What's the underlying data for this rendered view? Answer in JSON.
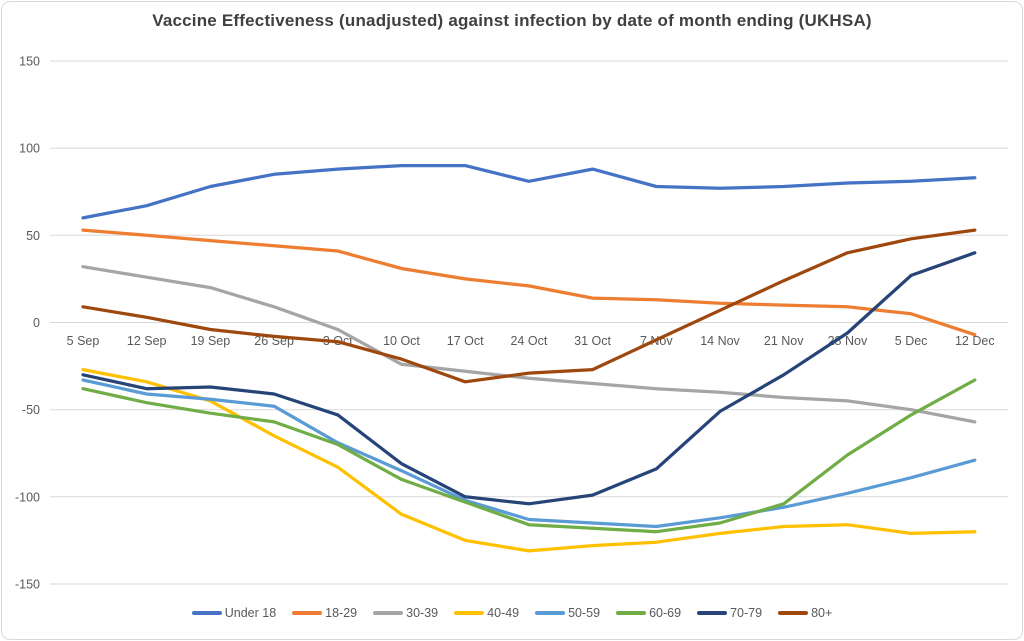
{
  "title": "Vaccine Effectiveness (unadjusted) against infection by date of month ending (UKHSA)",
  "colors": {
    "grid": "#D9D9D9",
    "axis_text": "#595959",
    "title_text": "#404040",
    "frame_border": "#D9D9D9"
  },
  "chart_data": {
    "type": "line",
    "title": "Vaccine Effectiveness (unadjusted) against infection by date of month ending (UKHSA)",
    "xlabel": "",
    "ylabel": "",
    "ylim": [
      -150,
      150
    ],
    "yticks": [
      150,
      100,
      50,
      0,
      -50,
      -100,
      -150
    ],
    "grid": true,
    "legend_position": "bottom",
    "categories": [
      "5 Sep",
      "12 Sep",
      "19 Sep",
      "26 Sep",
      "3 Oct",
      "10 Oct",
      "17 Oct",
      "24 Oct",
      "31 Oct",
      "7 Nov",
      "14 Nov",
      "21 Nov",
      "28 Nov",
      "5 Dec",
      "12 Dec"
    ],
    "series": [
      {
        "name": "Under 18",
        "color": "#4472C4",
        "values": [
          60,
          67,
          78,
          85,
          88,
          90,
          90,
          81,
          88,
          78,
          77,
          78,
          80,
          81,
          83
        ]
      },
      {
        "name": "18-29",
        "color": "#ED7D31",
        "values": [
          53,
          50,
          47,
          44,
          41,
          31,
          25,
          21,
          14,
          13,
          11,
          10,
          9,
          5,
          -7
        ]
      },
      {
        "name": "30-39",
        "color": "#A5A5A5",
        "values": [
          32,
          26,
          20,
          9,
          -4,
          -24,
          -28,
          -32,
          -35,
          -38,
          -40,
          -43,
          -45,
          -50,
          -57
        ]
      },
      {
        "name": "40-49",
        "color": "#FFC000",
        "values": [
          -27,
          -34,
          -45,
          -65,
          -83,
          -110,
          -125,
          -131,
          -128,
          -126,
          -121,
          -117,
          -116,
          -121,
          -120
        ]
      },
      {
        "name": "50-59",
        "color": "#5B9BD5",
        "values": [
          -33,
          -41,
          -44,
          -48,
          -69,
          -85,
          -102,
          -113,
          -115,
          -117,
          -112,
          -106,
          -98,
          -89,
          -79
        ]
      },
      {
        "name": "60-69",
        "color": "#70AD47",
        "values": [
          -38,
          -46,
          -52,
          -57,
          -70,
          -90,
          -103,
          -116,
          -118,
          -120,
          -115,
          -104,
          -76,
          -53,
          -33
        ]
      },
      {
        "name": "70-79",
        "color": "#264478",
        "values": [
          -30,
          -38,
          -37,
          -41,
          -53,
          -81,
          -100,
          -104,
          -99,
          -84,
          -51,
          -30,
          -6,
          27,
          40
        ]
      },
      {
        "name": "80+",
        "color": "#9E480E",
        "values": [
          9,
          3,
          -4,
          -8,
          -11,
          -21,
          -34,
          -29,
          -27,
          -10,
          7,
          24,
          40,
          48,
          53
        ]
      }
    ]
  }
}
